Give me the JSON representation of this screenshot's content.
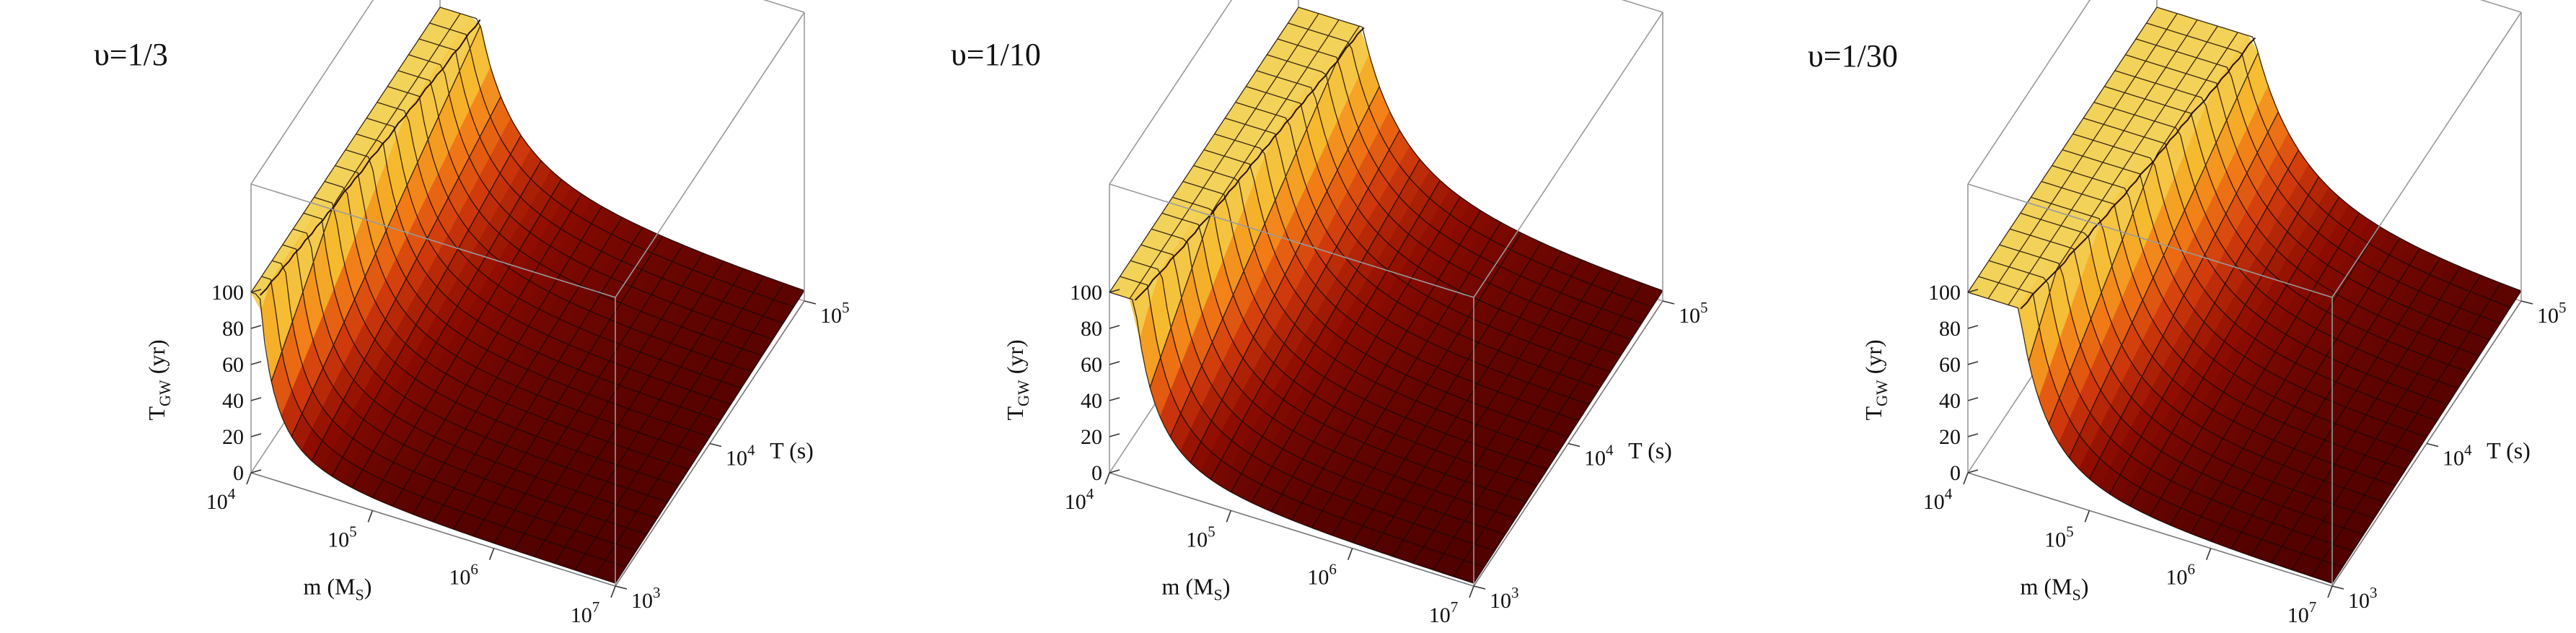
{
  "chart_data": [
    {
      "type": "surface",
      "title": "υ=1/3",
      "xlabel": "m (M",
      "xlabel_sub": "S",
      "xlabel_end": ")",
      "ylabel": "T (s)",
      "zlabel": "T",
      "zlabel_sub": "GW",
      "zlabel_end": " (yr)",
      "x_scale": "log",
      "xlim": [
        10000,
        10000000
      ],
      "y_scale": "log",
      "ylim": [
        1000,
        100000
      ],
      "zlim": [
        0,
        100
      ],
      "x_ticks": [
        {
          "base": "10",
          "exp": "4"
        },
        {
          "base": "10",
          "exp": "5"
        },
        {
          "base": "10",
          "exp": "6"
        },
        {
          "base": "10",
          "exp": "7"
        }
      ],
      "y_ticks": [
        {
          "base": "10",
          "exp": "3"
        },
        {
          "base": "10",
          "exp": "4"
        },
        {
          "base": "10",
          "exp": "5"
        }
      ],
      "z_ticks": [
        "0",
        "20",
        "40",
        "60",
        "80",
        "100"
      ],
      "surface_clip_z": 100,
      "colormap": [
        "#4a0000",
        "#8c0c00",
        "#d13a0c",
        "#f27a16",
        "#f6b92d",
        "#f3d25a"
      ]
    },
    {
      "type": "surface",
      "title": "υ=1/10",
      "xlabel": "m (M",
      "xlabel_sub": "S",
      "xlabel_end": ")",
      "ylabel": "T (s)",
      "zlabel": "T",
      "zlabel_sub": "GW",
      "zlabel_end": " (yr)",
      "x_scale": "log",
      "xlim": [
        10000,
        10000000
      ],
      "y_scale": "log",
      "ylim": [
        1000,
        100000
      ],
      "zlim": [
        0,
        100
      ],
      "x_ticks": [
        {
          "base": "10",
          "exp": "4"
        },
        {
          "base": "10",
          "exp": "5"
        },
        {
          "base": "10",
          "exp": "6"
        },
        {
          "base": "10",
          "exp": "7"
        }
      ],
      "y_ticks": [
        {
          "base": "10",
          "exp": "3"
        },
        {
          "base": "10",
          "exp": "4"
        },
        {
          "base": "10",
          "exp": "5"
        }
      ],
      "z_ticks": [
        "0",
        "20",
        "40",
        "60",
        "80",
        "100"
      ],
      "surface_clip_z": 100,
      "colormap": [
        "#4a0000",
        "#8c0c00",
        "#d13a0c",
        "#f27a16",
        "#f6b92d",
        "#f3d25a"
      ]
    },
    {
      "type": "surface",
      "title": "υ=1/30",
      "xlabel": "m (M",
      "xlabel_sub": "S",
      "xlabel_end": ")",
      "ylabel": "T (s)",
      "zlabel": "T",
      "zlabel_sub": "GW",
      "zlabel_end": " (yr)",
      "x_scale": "log",
      "xlim": [
        10000,
        10000000
      ],
      "y_scale": "log",
      "ylim": [
        1000,
        100000
      ],
      "zlim": [
        0,
        100
      ],
      "x_ticks": [
        {
          "base": "10",
          "exp": "4"
        },
        {
          "base": "10",
          "exp": "5"
        },
        {
          "base": "10",
          "exp": "6"
        },
        {
          "base": "10",
          "exp": "7"
        }
      ],
      "y_ticks": [
        {
          "base": "10",
          "exp": "3"
        },
        {
          "base": "10",
          "exp": "4"
        },
        {
          "base": "10",
          "exp": "5"
        }
      ],
      "z_ticks": [
        "0",
        "20",
        "40",
        "60",
        "80",
        "100"
      ],
      "surface_clip_z": 100,
      "colormap": [
        "#4a0000",
        "#8c0c00",
        "#d13a0c",
        "#f27a16",
        "#f6b92d",
        "#f3d25a"
      ]
    }
  ]
}
